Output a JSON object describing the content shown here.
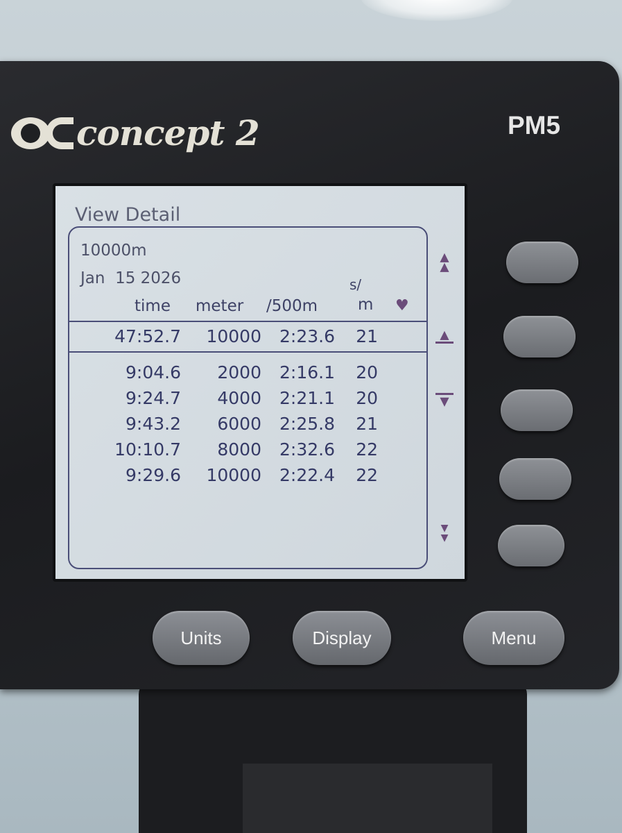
{
  "device": {
    "brand": "concept 2",
    "model": "PM5"
  },
  "screen": {
    "title": "View Detail",
    "workout": "10000m",
    "date": "Jan  15 2026",
    "columns": {
      "time": "time",
      "meter": "meter",
      "pace": "/500m",
      "spm_top": "s/",
      "spm_bottom": "m",
      "heart": "♥"
    },
    "summary": {
      "time": "47:52.7",
      "meter": "10000",
      "pace": "2:23.6",
      "spm": "21"
    },
    "splits": [
      {
        "time": "9:04.6",
        "meter": "2000",
        "pace": "2:16.1",
        "spm": "20"
      },
      {
        "time": "9:24.7",
        "meter": "4000",
        "pace": "2:21.1",
        "spm": "20"
      },
      {
        "time": "9:43.2",
        "meter": "6000",
        "pace": "2:25.8",
        "spm": "21"
      },
      {
        "time": "10:10.7",
        "meter": "8000",
        "pace": "2:32.6",
        "spm": "22"
      },
      {
        "time": "9:29.6",
        "meter": "10000",
        "pace": "2:22.4",
        "spm": "22"
      }
    ],
    "scroll_icons": [
      "page-up-icon",
      "line-up-icon",
      "line-down-icon",
      "page-down-icon"
    ]
  },
  "buttons": {
    "units": "Units",
    "display": "Display",
    "menu": "Menu"
  },
  "colors": {
    "lcd": "#d6dde2",
    "text": "#353a66",
    "accent": "#6b4c7a",
    "body": "#1f2023"
  }
}
